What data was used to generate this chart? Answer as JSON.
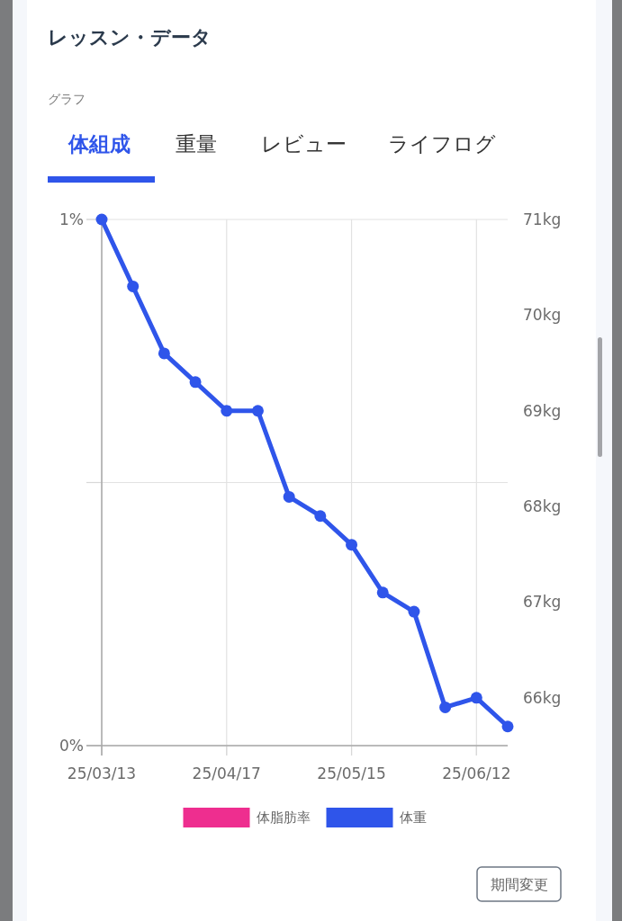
{
  "chart_data": {
    "type": "line",
    "title": "レッスン・データ",
    "subtitle": "グラフ",
    "annotations": [
      "体組成",
      "重量",
      "レビュー",
      "ライフログ",
      "期間変更"
    ],
    "categories": [
      "25/03/13",
      null,
      null,
      null,
      "25/04/17",
      null,
      null,
      null,
      "25/05/15",
      null,
      null,
      null,
      "25/06/12",
      null
    ],
    "series": [
      {
        "name": "体脂肪率",
        "color": "#ee2e8f",
        "values": [
          null,
          null,
          null,
          null,
          null,
          null,
          null,
          null,
          null,
          null,
          null,
          null,
          null,
          null
        ]
      },
      {
        "name": "体重",
        "color": "#2f55ea",
        "axis": "y2",
        "values": [
          71.0,
          70.3,
          69.6,
          69.3,
          69.0,
          69.0,
          68.1,
          67.9,
          67.6,
          67.1,
          66.9,
          65.9,
          66.0,
          65.7
        ]
      }
    ],
    "ylim": [
      0,
      1
    ],
    "yticks": [
      {
        "value": 0,
        "label": "0%"
      },
      {
        "value": 0.5,
        "label": null
      },
      {
        "value": 1,
        "label": "1%"
      }
    ],
    "y2lim": [
      65.5,
      71
    ],
    "y2ticks": [
      {
        "value": 66,
        "label": "66kg"
      },
      {
        "value": 67,
        "label": "67kg"
      },
      {
        "value": 68,
        "label": "68kg"
      },
      {
        "value": 69,
        "label": "69kg"
      },
      {
        "value": 70,
        "label": "70kg"
      },
      {
        "value": 71,
        "label": "71kg"
      }
    ],
    "grid": true,
    "legend": "bottom",
    "marker": "circle"
  }
}
